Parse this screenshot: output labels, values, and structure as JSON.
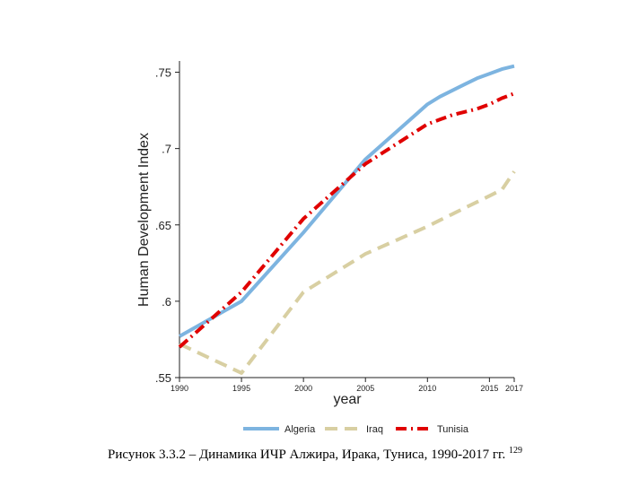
{
  "chart_data": {
    "type": "line",
    "xlabel": "year",
    "ylabel": "Human Development Index",
    "xlim": [
      1990,
      2017
    ],
    "ylim": [
      0.55,
      0.755
    ],
    "x_ticks": [
      1990,
      1995,
      2000,
      2005,
      2010,
      2015,
      2017
    ],
    "y_ticks": [
      0.55,
      0.6,
      0.65,
      0.7,
      0.75
    ],
    "y_tick_labels": [
      ".55",
      ".6",
      ".65",
      ".7",
      ".75"
    ],
    "legend_position": "bottom",
    "grid": false,
    "series": [
      {
        "name": "Algeria",
        "color": "#7db4e0",
        "style": "solid",
        "x": [
          1990,
          1995,
          2000,
          2005,
          2010,
          2011,
          2012,
          2013,
          2014,
          2015,
          2016,
          2017
        ],
        "values": [
          0.577,
          0.6,
          0.645,
          0.693,
          0.729,
          0.734,
          0.738,
          0.742,
          0.746,
          0.749,
          0.752,
          0.754
        ]
      },
      {
        "name": "Iraq",
        "color": "#d8cfa2",
        "style": "dash",
        "x": [
          1990,
          1995,
          2000,
          2005,
          2010,
          2011,
          2012,
          2013,
          2014,
          2015,
          2016,
          2017
        ],
        "values": [
          0.572,
          0.553,
          0.606,
          0.631,
          0.649,
          0.653,
          0.657,
          0.661,
          0.665,
          0.669,
          0.673,
          0.685
        ]
      },
      {
        "name": "Tunisia",
        "color": "#e00000",
        "style": "dashdot",
        "x": [
          1990,
          1995,
          2000,
          2005,
          2010,
          2011,
          2012,
          2013,
          2014,
          2015,
          2016,
          2017
        ],
        "values": [
          0.57,
          0.606,
          0.654,
          0.69,
          0.716,
          0.719,
          0.722,
          0.724,
          0.726,
          0.729,
          0.733,
          0.736
        ]
      }
    ]
  },
  "caption": {
    "text": "Рисунок 3.3.2 – Динамика ИЧР Алжира, Ирака, Туниса, 1990-2017 гг.",
    "footnote": "129"
  }
}
